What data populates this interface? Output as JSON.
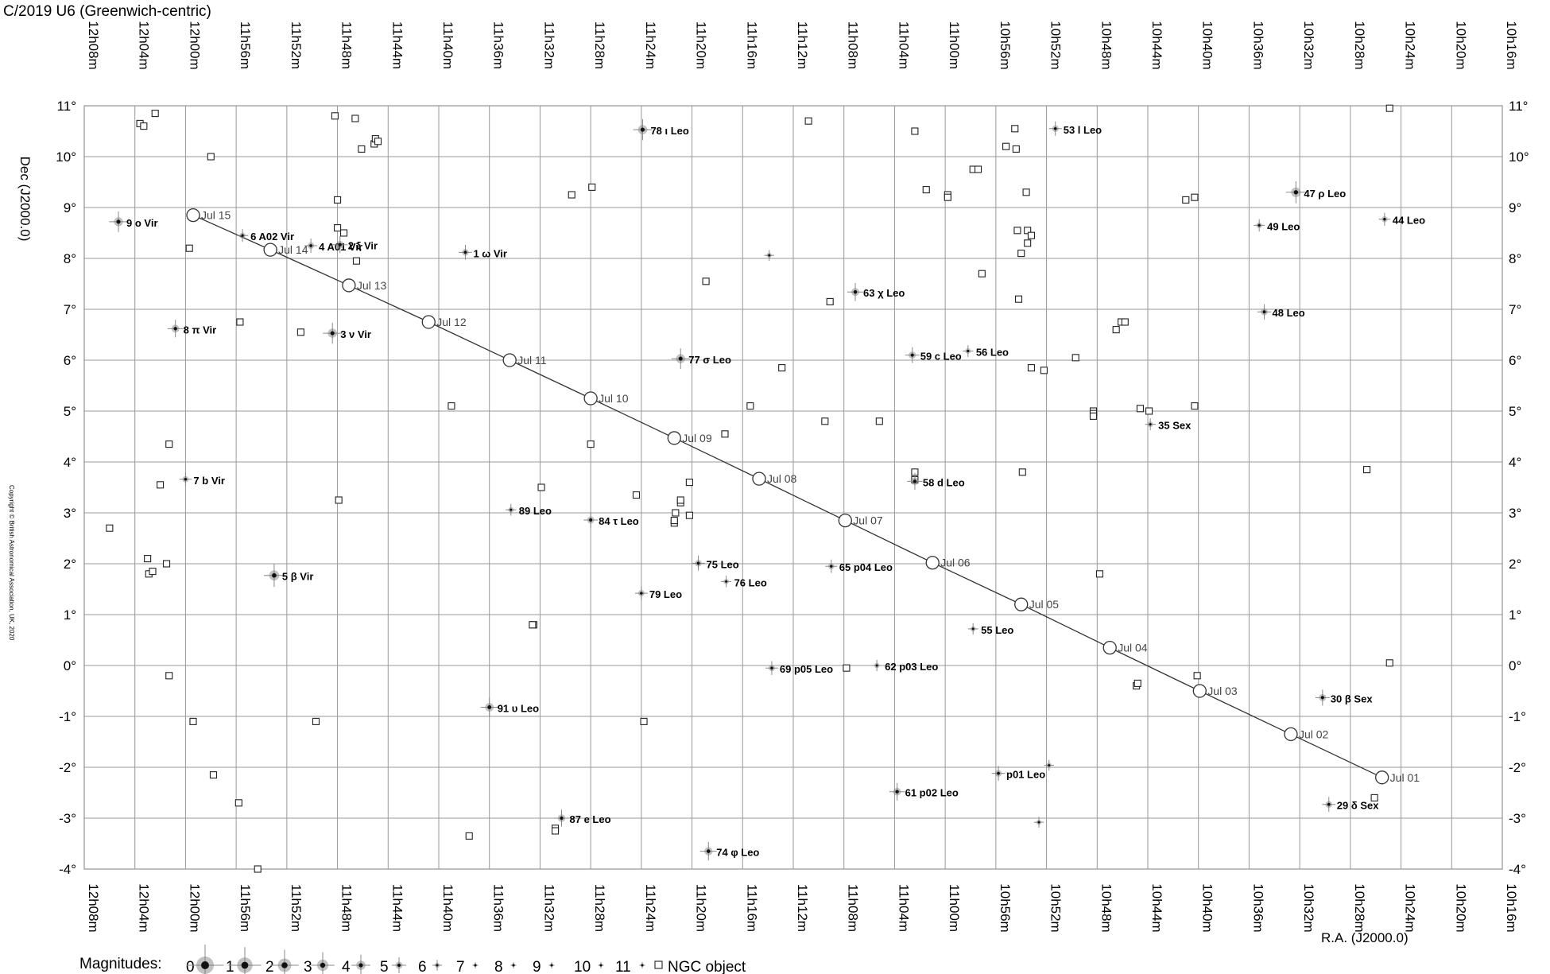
{
  "chart_data": {
    "type": "scatter",
    "title": "C/2019 U6  (Greenwich-centric)",
    "xlabel": "R.A. (J2000.0)",
    "ylabel": "Dec (J2000.0)",
    "copyright": "Copyright © British Astronomical Association, UK, 2020",
    "x_range_minutes": [
      616,
      728
    ],
    "y_range_deg": [
      -4,
      11
    ],
    "x_ticks": [
      "12h08m",
      "12h04m",
      "12h00m",
      "11h56m",
      "11h52m",
      "11h48m",
      "11h44m",
      "11h40m",
      "11h36m",
      "11h32m",
      "11h28m",
      "11h24m",
      "11h20m",
      "11h16m",
      "11h12m",
      "11h08m",
      "11h04m",
      "11h00m",
      "10h56m",
      "10h52m",
      "10h48m",
      "10h44m",
      "10h40m",
      "10h36m",
      "10h32m",
      "10h28m",
      "10h24m",
      "10h20m",
      "10h16m"
    ],
    "y_ticks": [
      "11°",
      "10°",
      "9°",
      "8°",
      "7°",
      "6°",
      "5°",
      "4°",
      "3°",
      "2°",
      "1°",
      "0°",
      "-1°",
      "-2°",
      "-3°",
      "-4°"
    ],
    "grid": true,
    "series": [
      {
        "name": "comet path",
        "points": [
          {
            "label": "Jul 01",
            "ra": 625.5,
            "dec": -2.2
          },
          {
            "label": "Jul 02",
            "ra": 632.7,
            "dec": -1.35
          },
          {
            "label": "Jul 03",
            "ra": 639.9,
            "dec": -0.5
          },
          {
            "label": "Jul 04",
            "ra": 647.0,
            "dec": 0.35
          },
          {
            "label": "Jul 05",
            "ra": 654.0,
            "dec": 1.2
          },
          {
            "label": "Jul 06",
            "ra": 661.0,
            "dec": 2.02
          },
          {
            "label": "Jul 07",
            "ra": 667.9,
            "dec": 2.85
          },
          {
            "label": "Jul 08",
            "ra": 674.7,
            "dec": 3.67
          },
          {
            "label": "Jul 09",
            "ra": 681.4,
            "dec": 4.47
          },
          {
            "label": "Jul 10",
            "ra": 688.0,
            "dec": 5.25
          },
          {
            "label": "Jul 11",
            "ra": 694.4,
            "dec": 6.0
          },
          {
            "label": "Jul 12",
            "ra": 700.8,
            "dec": 6.75
          },
          {
            "label": "Jul 13",
            "ra": 707.1,
            "dec": 7.47
          },
          {
            "label": "Jul 14",
            "ra": 713.3,
            "dec": 8.17
          },
          {
            "label": "Jul 15",
            "ra": 719.4,
            "dec": 8.85
          }
        ]
      },
      {
        "name": "stars",
        "points": [
          {
            "label": "9 ο Vir",
            "ra": 725.3,
            "dec": 8.72,
            "mag": 4.1
          },
          {
            "label": "6 A02 Vir",
            "ra": 715.5,
            "dec": 8.45,
            "mag": 5.6
          },
          {
            "label": "4 A01 Vir",
            "ra": 710.1,
            "dec": 8.25,
            "mag": 5.3
          },
          {
            "label": "2 ξ Vir",
            "ra": 707.8,
            "dec": 8.27,
            "mag": 4.8
          },
          {
            "label": "1 ω Vir",
            "ra": 697.9,
            "dec": 8.12,
            "mag": 5.2
          },
          {
            "label": "8 π Vir",
            "ra": 720.8,
            "dec": 6.62,
            "mag": 4.7
          },
          {
            "label": "3 ν Vir",
            "ra": 708.4,
            "dec": 6.53,
            "mag": 4.0
          },
          {
            "label": "7 b Vir",
            "ra": 720.0,
            "dec": 3.66,
            "mag": 5.4
          },
          {
            "label": "5 β Vir",
            "ra": 713.0,
            "dec": 1.77,
            "mag": 3.6
          },
          {
            "label": "78 ι Leo",
            "ra": 683.9,
            "dec": 10.53,
            "mag": 4.0
          },
          {
            "label": "77 σ Leo",
            "ra": 680.9,
            "dec": 6.03,
            "mag": 4.1
          },
          {
            "label": "89 Leo",
            "ra": 694.3,
            "dec": 3.06,
            "mag": 5.8
          },
          {
            "label": "84 τ Leo",
            "ra": 688.0,
            "dec": 2.86,
            "mag": 5.0
          },
          {
            "label": "75 Leo",
            "ra": 679.5,
            "dec": 2.01,
            "mag": 5.2
          },
          {
            "label": "76 Leo",
            "ra": 677.3,
            "dec": 1.65,
            "mag": 5.9
          },
          {
            "label": "79 Leo",
            "ra": 684.0,
            "dec": 1.42,
            "mag": 5.4
          },
          {
            "label": "91 υ Leo",
            "ra": 696.0,
            "dec": -0.82,
            "mag": 4.3
          },
          {
            "label": "87 e Leo",
            "ra": 690.3,
            "dec": -3.0,
            "mag": 4.8
          },
          {
            "label": "74 φ Leo",
            "ra": 678.7,
            "dec": -3.65,
            "mag": 4.5
          },
          {
            "label": "69 p05 Leo",
            "ra": 673.7,
            "dec": -0.05,
            "mag": 5.4
          },
          {
            "label": "62 p03 Leo",
            "ra": 665.4,
            "dec": 0.0,
            "mag": 5.9
          },
          {
            "label": "65 p04 Leo",
            "ra": 669.0,
            "dec": 1.95,
            "mag": 5.5
          },
          {
            "label": "63 χ Leo",
            "ra": 667.1,
            "dec": 7.34,
            "mag": 4.6
          },
          {
            "label": "59 c Leo",
            "ra": 662.6,
            "dec": 6.1,
            "mag": 5.0
          },
          {
            "label": "58 d Leo",
            "ra": 662.4,
            "dec": 3.62,
            "mag": 4.8
          },
          {
            "label": "56 Leo",
            "ra": 658.2,
            "dec": 6.18,
            "mag": 5.8
          },
          {
            "label": "55 Leo",
            "ra": 657.8,
            "dec": 0.72,
            "mag": 5.9
          },
          {
            "label": "61 p02 Leo",
            "ra": 663.8,
            "dec": -2.48,
            "mag": 4.7
          },
          {
            "label": "p01 Leo",
            "ra": 655.8,
            "dec": -2.12,
            "mag": 5.2
          },
          {
            "label": "53 l Leo",
            "ra": 651.3,
            "dec": 10.55,
            "mag": 5.3
          },
          {
            "label": "47 ρ Leo",
            "ra": 632.3,
            "dec": 9.3,
            "mag": 3.8
          },
          {
            "label": "49 Leo",
            "ra": 635.2,
            "dec": 8.65,
            "mag": 5.7
          },
          {
            "label": "44 Leo",
            "ra": 625.3,
            "dec": 8.77,
            "mag": 5.6
          },
          {
            "label": "48 Leo",
            "ra": 634.8,
            "dec": 6.95,
            "mag": 5.1
          },
          {
            "label": "35 Sex",
            "ra": 643.8,
            "dec": 4.74,
            "mag": 5.8
          },
          {
            "label": "30 β Sex",
            "ra": 630.2,
            "dec": -0.63,
            "mag": 5.0
          },
          {
            "label": "29 δ Sex",
            "ra": 629.7,
            "dec": -2.73,
            "mag": 5.2
          },
          {
            "label": "",
            "ra": 673.9,
            "dec": 8.06,
            "mag": 6.0
          },
          {
            "label": "",
            "ra": 651.8,
            "dec": -1.96,
            "mag": 6.0
          },
          {
            "label": "",
            "ra": 652.6,
            "dec": -3.08,
            "mag": 6.0
          }
        ]
      },
      {
        "name": "NGC object",
        "points": [
          [
            726.0,
            2.7
          ],
          [
            723.6,
            10.65
          ],
          [
            723.3,
            10.6
          ],
          [
            722.4,
            10.85
          ],
          [
            723.0,
            2.1
          ],
          [
            722.9,
            1.8
          ],
          [
            722.6,
            1.85
          ],
          [
            721.5,
            2.0
          ],
          [
            721.3,
            4.35
          ],
          [
            722.0,
            3.55
          ],
          [
            721.3,
            -0.2
          ],
          [
            719.7,
            8.2
          ],
          [
            719.4,
            -1.1
          ],
          [
            718.0,
            10.0
          ],
          [
            717.8,
            -2.15
          ],
          [
            715.7,
            6.75
          ],
          [
            715.8,
            -2.7
          ],
          [
            714.3,
            -4.0
          ],
          [
            710.9,
            6.55
          ],
          [
            709.7,
            -1.1
          ],
          [
            708.2,
            10.8
          ],
          [
            708.0,
            9.15
          ],
          [
            708.0,
            8.6
          ],
          [
            707.9,
            3.25
          ],
          [
            707.5,
            8.5
          ],
          [
            706.6,
            10.75
          ],
          [
            706.5,
            7.95
          ],
          [
            706.1,
            10.15
          ],
          [
            705.1,
            10.25
          ],
          [
            705.0,
            10.35
          ],
          [
            704.8,
            10.3
          ],
          [
            699.0,
            5.1
          ],
          [
            697.6,
            -3.35
          ],
          [
            691.9,
            3.5
          ],
          [
            692.5,
            0.8
          ],
          [
            692.6,
            0.8
          ],
          [
            690.8,
            -3.2
          ],
          [
            690.8,
            -3.25
          ],
          [
            689.5,
            9.25
          ],
          [
            687.9,
            9.4
          ],
          [
            688.0,
            4.35
          ],
          [
            684.4,
            3.35
          ],
          [
            683.8,
            -1.1
          ],
          [
            681.4,
            2.8
          ],
          [
            681.4,
            2.85
          ],
          [
            681.3,
            3.0
          ],
          [
            680.9,
            3.2
          ],
          [
            680.9,
            3.25
          ],
          [
            680.2,
            3.6
          ],
          [
            680.2,
            2.95
          ],
          [
            678.9,
            7.55
          ],
          [
            677.4,
            4.55
          ],
          [
            675.4,
            5.1
          ],
          [
            672.9,
            5.85
          ],
          [
            670.8,
            10.7
          ],
          [
            669.5,
            4.8
          ],
          [
            669.1,
            7.15
          ],
          [
            667.8,
            -0.05
          ],
          [
            665.2,
            4.8
          ],
          [
            662.4,
            10.5
          ],
          [
            662.4,
            3.8
          ],
          [
            662.4,
            3.65
          ],
          [
            661.5,
            9.35
          ],
          [
            659.8,
            9.25
          ],
          [
            659.8,
            9.2
          ],
          [
            657.8,
            9.75
          ],
          [
            657.4,
            9.75
          ],
          [
            657.1,
            7.7
          ],
          [
            655.2,
            10.2
          ],
          [
            654.5,
            10.55
          ],
          [
            654.4,
            10.15
          ],
          [
            654.3,
            8.55
          ],
          [
            654.2,
            7.2
          ],
          [
            654.0,
            8.1
          ],
          [
            653.9,
            3.8
          ],
          [
            653.6,
            9.3
          ],
          [
            653.5,
            8.3
          ],
          [
            653.5,
            8.55
          ],
          [
            653.2,
            8.45
          ],
          [
            653.2,
            5.85
          ],
          [
            652.2,
            5.8
          ],
          [
            649.7,
            6.05
          ],
          [
            648.3,
            5.0
          ],
          [
            648.3,
            4.95
          ],
          [
            648.3,
            4.9
          ],
          [
            647.8,
            1.8
          ],
          [
            646.5,
            6.6
          ],
          [
            646.1,
            6.75
          ],
          [
            645.8,
            6.75
          ],
          [
            644.9,
            -0.4
          ],
          [
            644.8,
            -0.35
          ],
          [
            644.6,
            5.05
          ],
          [
            643.9,
            5.0
          ],
          [
            641.0,
            9.15
          ],
          [
            640.3,
            9.2
          ],
          [
            640.3,
            5.1
          ],
          [
            640.1,
            -0.2
          ],
          [
            626.1,
            -2.6
          ],
          [
            626.7,
            3.85
          ],
          [
            624.9,
            0.05
          ],
          [
            624.9,
            10.95
          ]
        ]
      }
    ],
    "legend": {
      "magnitudes_label": "Magnitudes:",
      "magnitudes": [
        "0",
        "1",
        "2",
        "3",
        "4",
        "5",
        "6",
        "7",
        "8",
        "9",
        "10",
        "11"
      ],
      "ngc_label": "NGC object",
      "position": "bottom-left"
    }
  }
}
